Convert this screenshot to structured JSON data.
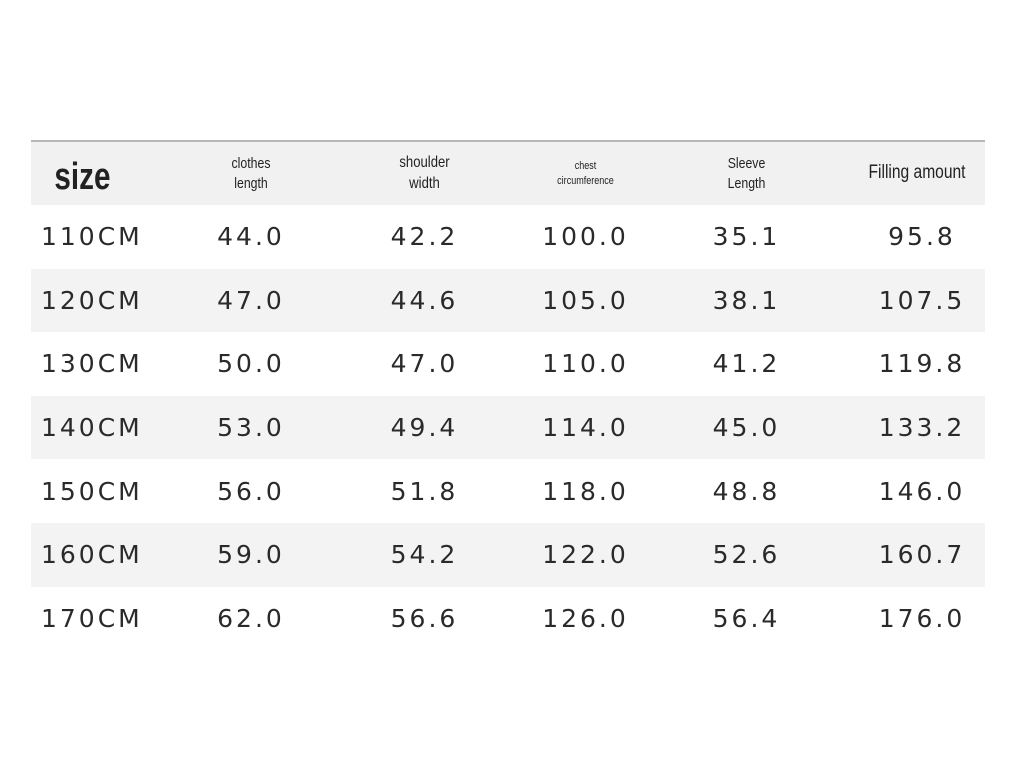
{
  "table": {
    "headers": [
      {
        "lines": [
          "size"
        ]
      },
      {
        "lines": [
          "clothes",
          "length"
        ]
      },
      {
        "lines": [
          "shoulder",
          "width"
        ]
      },
      {
        "lines": [
          "chest",
          "circumference"
        ]
      },
      {
        "lines": [
          "Sleeve",
          "Length"
        ]
      },
      {
        "lines": [
          "Filling amount"
        ]
      }
    ],
    "rows": [
      [
        "110CM",
        "44.0",
        "42.2",
        "100.0",
        "35.1",
        "95.8"
      ],
      [
        "120CM",
        "47.0",
        "44.6",
        "105.0",
        "38.1",
        "107.5"
      ],
      [
        "130CM",
        "50.0",
        "47.0",
        "110.0",
        "41.2",
        "119.8"
      ],
      [
        "140CM",
        "53.0",
        "49.4",
        "114.0",
        "45.0",
        "133.2"
      ],
      [
        "150CM",
        "56.0",
        "51.8",
        "118.0",
        "48.8",
        "146.0"
      ],
      [
        "160CM",
        "59.0",
        "54.2",
        "122.0",
        "52.6",
        "160.7"
      ],
      [
        "170CM",
        "62.0",
        "56.6",
        "126.0",
        "56.4",
        "176.0"
      ]
    ]
  },
  "colors": {
    "header_bg": "#f1f1f1",
    "row_shade": "#f3f3f3",
    "rule": "#b8b8b8",
    "text": "#222222"
  }
}
